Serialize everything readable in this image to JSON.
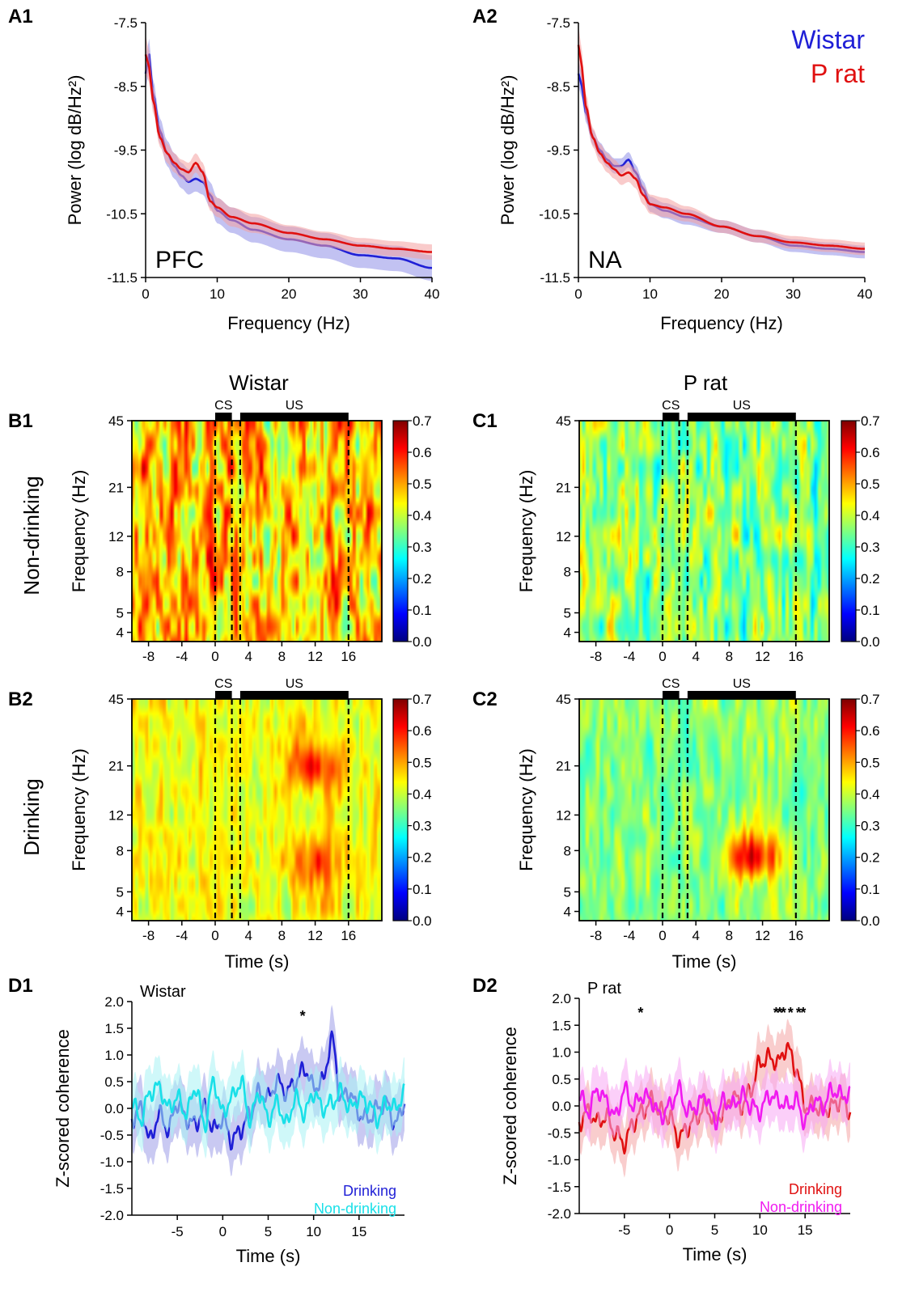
{
  "figure": {
    "column_titles": [
      "Wistar",
      "P rat"
    ],
    "row_labels": [
      "Non-drinking",
      "Drinking"
    ]
  },
  "chart_data": [
    {
      "id": "A1",
      "type": "line",
      "panel_label": "A1",
      "annotation": "PFC",
      "xlabel": "Frequency (Hz)",
      "ylabel": "Power (log dB/Hz²)",
      "xlim": [
        0,
        40
      ],
      "ylim": [
        -11.5,
        -7.5
      ],
      "xticks": [
        0,
        10,
        20,
        30,
        40
      ],
      "yticks": [
        -7.5,
        -8.5,
        -9.5,
        -10.5,
        -11.5
      ],
      "ytick_labels": [
        "-7.5",
        "-8.5",
        "-9.5",
        "-10.5",
        "-11.5"
      ],
      "x": [
        0,
        0.5,
        1,
        2,
        3,
        4,
        5,
        6,
        7,
        8,
        9,
        10,
        12,
        15,
        20,
        25,
        30,
        35,
        40
      ],
      "series": [
        {
          "name": "Wistar",
          "color": "#1f1fd6",
          "band_color": "#8f8fe8",
          "values": [
            -8.3,
            -8.0,
            -8.6,
            -9.2,
            -9.55,
            -9.75,
            -9.9,
            -10.0,
            -9.95,
            -10.0,
            -10.2,
            -10.45,
            -10.6,
            -10.75,
            -10.9,
            -11.0,
            -11.15,
            -11.2,
            -11.35
          ],
          "band": [
            0.25,
            0.25,
            0.22,
            0.2,
            0.2,
            0.2,
            0.2,
            0.2,
            0.2,
            0.2,
            0.2,
            0.2,
            0.2,
            0.2,
            0.2,
            0.2,
            0.2,
            0.2,
            0.2
          ]
        },
        {
          "name": "P rat",
          "color": "#e01010",
          "band_color": "#f4a0a0",
          "values": [
            -8.0,
            -8.2,
            -8.7,
            -9.3,
            -9.55,
            -9.7,
            -9.8,
            -9.85,
            -9.7,
            -9.85,
            -10.3,
            -10.4,
            -10.55,
            -10.65,
            -10.8,
            -10.9,
            -11.0,
            -11.05,
            -11.1
          ],
          "band": [
            0.3,
            0.25,
            0.2,
            0.15,
            0.15,
            0.15,
            0.15,
            0.15,
            0.15,
            0.15,
            0.15,
            0.15,
            0.15,
            0.15,
            0.12,
            0.12,
            0.12,
            0.12,
            0.12
          ]
        }
      ]
    },
    {
      "id": "A2",
      "type": "line",
      "panel_label": "A2",
      "annotation": "NA",
      "xlabel": "Frequency (Hz)",
      "ylabel": "Power (log dB/Hz²)",
      "xlim": [
        0,
        40
      ],
      "ylim": [
        -11.5,
        -7.5
      ],
      "xticks": [
        0,
        10,
        20,
        30,
        40
      ],
      "yticks": [
        -7.5,
        -8.5,
        -9.5,
        -10.5,
        -11.5
      ],
      "ytick_labels": [
        "-7.5",
        "-8.5",
        "-9.5",
        "-10.5",
        "-11.5"
      ],
      "legend": {
        "position": "top-right",
        "entries": [
          "Wistar",
          "P rat"
        ]
      },
      "x": [
        0,
        0.5,
        1,
        2,
        3,
        4,
        5,
        6,
        7,
        8,
        9,
        10,
        12,
        15,
        20,
        25,
        30,
        35,
        40
      ],
      "series": [
        {
          "name": "Wistar",
          "color": "#1f1fd6",
          "band_color": "#8f8fe8",
          "values": [
            -8.3,
            -8.5,
            -8.9,
            -9.3,
            -9.5,
            -9.65,
            -9.75,
            -9.75,
            -9.65,
            -9.85,
            -10.1,
            -10.35,
            -10.45,
            -10.55,
            -10.7,
            -10.85,
            -11.0,
            -11.05,
            -11.1
          ],
          "band": [
            0.2,
            0.2,
            0.15,
            0.12,
            0.12,
            0.12,
            0.12,
            0.12,
            0.12,
            0.12,
            0.12,
            0.12,
            0.12,
            0.12,
            0.1,
            0.1,
            0.1,
            0.1,
            0.1
          ]
        },
        {
          "name": "P rat",
          "color": "#e01010",
          "band_color": "#f4a0a0",
          "values": [
            -7.85,
            -8.2,
            -8.8,
            -9.3,
            -9.55,
            -9.7,
            -9.8,
            -9.9,
            -9.85,
            -9.95,
            -10.2,
            -10.35,
            -10.4,
            -10.5,
            -10.7,
            -10.85,
            -10.95,
            -11.0,
            -11.05
          ],
          "band": [
            0.3,
            0.25,
            0.2,
            0.15,
            0.15,
            0.15,
            0.15,
            0.15,
            0.15,
            0.15,
            0.15,
            0.15,
            0.15,
            0.12,
            0.1,
            0.1,
            0.1,
            0.1,
            0.1
          ]
        }
      ]
    },
    {
      "id": "B1",
      "type": "heatmap",
      "panel_label": "B1",
      "xlabel": "",
      "ylabel": "Frequency (Hz)",
      "xlim": [
        -10,
        20
      ],
      "xticks": [
        -8,
        -4,
        0,
        4,
        8,
        12,
        16
      ],
      "yticks": [
        4,
        5,
        8,
        12,
        21,
        45
      ],
      "clim": [
        0,
        0.7
      ],
      "colorbar_ticks": [
        "0.7",
        "0.6",
        "0.5",
        "0.4",
        "0.3",
        "0.2",
        "0.1",
        "0.0"
      ],
      "events": [
        {
          "label": "CS",
          "start": 0,
          "end": 2
        },
        {
          "label": "US",
          "start": 3,
          "end": 16
        }
      ],
      "dashed_lines": [
        0,
        2,
        3,
        16
      ],
      "mean_value": 0.48,
      "texture": 0.13,
      "blobs": []
    },
    {
      "id": "C1",
      "type": "heatmap",
      "panel_label": "C1",
      "xlabel": "",
      "ylabel": "Frequency (Hz)",
      "xlim": [
        -10,
        20
      ],
      "xticks": [
        -8,
        -4,
        0,
        4,
        8,
        12,
        16
      ],
      "yticks": [
        4,
        5,
        8,
        12,
        21,
        45
      ],
      "clim": [
        0,
        0.7
      ],
      "colorbar_ticks": [
        "0.7",
        "0.6",
        "0.5",
        "0.4",
        "0.3",
        "0.2",
        "0.1",
        "0.0"
      ],
      "events": [
        {
          "label": "CS",
          "start": 0,
          "end": 2
        },
        {
          "label": "US",
          "start": 3,
          "end": 16
        }
      ],
      "dashed_lines": [
        0,
        2,
        3,
        16
      ],
      "mean_value": 0.36,
      "texture": 0.1,
      "blobs": []
    },
    {
      "id": "B2",
      "type": "heatmap",
      "panel_label": "B2",
      "xlabel": "Time (s)",
      "ylabel": "Frequency (Hz)",
      "xlim": [
        -10,
        20
      ],
      "xticks": [
        -8,
        -4,
        0,
        4,
        8,
        12,
        16
      ],
      "yticks": [
        4,
        5,
        8,
        12,
        21,
        45
      ],
      "clim": [
        0,
        0.7
      ],
      "colorbar_ticks": [
        "0.7",
        "0.6",
        "0.5",
        "0.4",
        "0.3",
        "0.2",
        "0.1",
        "0.0"
      ],
      "events": [
        {
          "label": "CS",
          "start": 0,
          "end": 2
        },
        {
          "label": "US",
          "start": 3,
          "end": 16
        }
      ],
      "dashed_lines": [
        0,
        2,
        3,
        16
      ],
      "mean_value": 0.43,
      "texture": 0.06,
      "blobs": [
        {
          "time": 12,
          "freq": 21,
          "value": 0.6
        },
        {
          "time": 12,
          "freq": 7,
          "value": 0.56
        }
      ]
    },
    {
      "id": "C2",
      "type": "heatmap",
      "panel_label": "C2",
      "xlabel": "Time (s)",
      "ylabel": "Frequency (Hz)",
      "xlim": [
        -10,
        20
      ],
      "xticks": [
        -8,
        -4,
        0,
        4,
        8,
        12,
        16
      ],
      "yticks": [
        4,
        5,
        8,
        12,
        21,
        45
      ],
      "clim": [
        0,
        0.7
      ],
      "colorbar_ticks": [
        "0.7",
        "0.6",
        "0.5",
        "0.4",
        "0.3",
        "0.2",
        "0.1",
        "0.0"
      ],
      "events": [
        {
          "label": "CS",
          "start": 0,
          "end": 2
        },
        {
          "label": "US",
          "start": 3,
          "end": 16
        }
      ],
      "dashed_lines": [
        0,
        2,
        3,
        16
      ],
      "mean_value": 0.36,
      "texture": 0.06,
      "blobs": [
        {
          "time": 11,
          "freq": 7.5,
          "value": 0.62
        }
      ]
    },
    {
      "id": "D1",
      "type": "line",
      "panel_label": "D1",
      "annotation": "Wistar",
      "xlabel": "Time (s)",
      "ylabel": "Z-scored coherence",
      "xlim": [
        -10,
        20
      ],
      "ylim": [
        -2.0,
        2.0
      ],
      "xticks": [
        -5,
        0,
        5,
        10,
        15
      ],
      "yticks": [
        2.0,
        1.5,
        1.0,
        0.5,
        0.0,
        -0.5,
        -1.0,
        -1.5,
        -2.0
      ],
      "ytick_labels": [
        "2.0",
        "1.5",
        "1.0",
        "0.5",
        "0.0",
        "-0.5",
        "-1.0",
        "-1.5",
        "-2.0"
      ],
      "significance_marks": [
        {
          "time": 8.8,
          "label": "*"
        }
      ],
      "legend": {
        "position": "bottom-right",
        "entries": [
          "Drinking",
          "Non-drinking"
        ]
      },
      "x": [
        -10,
        -9,
        -8,
        -7,
        -6,
        -5,
        -4,
        -3,
        -2,
        -1,
        0,
        1,
        2,
        3,
        4,
        5,
        6,
        7,
        8,
        9,
        10,
        11,
        12,
        13,
        14,
        15,
        16,
        17,
        18,
        19,
        20
      ],
      "series": [
        {
          "name": "Drinking",
          "color": "#1f1fd6",
          "band_color": "#9c9ce8",
          "values": [
            -0.2,
            0.0,
            -0.6,
            -0.1,
            -0.4,
            0.1,
            -0.2,
            -0.3,
            0.0,
            -0.4,
            -0.2,
            -0.6,
            -0.4,
            -0.1,
            0.3,
            0.2,
            0.5,
            0.3,
            0.5,
            0.75,
            0.4,
            0.5,
            1.3,
            0.2,
            0.3,
            -0.1,
            -0.2,
            0.0,
            0.1,
            -0.3,
            0.1
          ],
          "band": [
            0.5,
            0.5,
            0.5,
            0.5,
            0.5,
            0.5,
            0.5,
            0.5,
            0.5,
            0.5,
            0.5,
            0.5,
            0.5,
            0.5,
            0.5,
            0.5,
            0.5,
            0.5,
            0.5,
            0.5,
            0.5,
            0.5,
            0.5,
            0.5,
            0.5,
            0.5,
            0.5,
            0.5,
            0.5,
            0.5,
            0.5
          ]
        },
        {
          "name": "Non-drinking",
          "color": "#19e0e8",
          "band_color": "#a8f2f4",
          "values": [
            0.1,
            -0.2,
            0.3,
            0.4,
            0.0,
            0.2,
            -0.1,
            0.4,
            -0.3,
            0.5,
            -0.1,
            0.2,
            0.5,
            -0.2,
            0.3,
            -0.2,
            0.1,
            -0.3,
            0.2,
            -0.1,
            0.3,
            0.0,
            0.1,
            0.3,
            0.0,
            0.2,
            0.1,
            -0.2,
            0.1,
            0.0,
            0.3
          ],
          "band": [
            0.5,
            0.5,
            0.5,
            0.5,
            0.5,
            0.5,
            0.5,
            0.5,
            0.5,
            0.5,
            0.5,
            0.5,
            0.5,
            0.5,
            0.5,
            0.5,
            0.5,
            0.5,
            0.5,
            0.5,
            0.5,
            0.5,
            0.5,
            0.5,
            0.5,
            0.5,
            0.5,
            0.5,
            0.5,
            0.5,
            0.5
          ]
        }
      ]
    },
    {
      "id": "D2",
      "type": "line",
      "panel_label": "D2",
      "annotation": "P rat",
      "xlabel": "Time (s)",
      "ylabel": "Z-scored coherence",
      "xlim": [
        -10,
        20
      ],
      "ylim": [
        -2.0,
        2.0
      ],
      "xticks": [
        -5,
        0,
        5,
        10,
        15
      ],
      "yticks": [
        2.0,
        1.5,
        1.0,
        0.5,
        0.0,
        -0.5,
        -1.0,
        -1.5,
        -2.0
      ],
      "ytick_labels": [
        "2.0",
        "1.5",
        "1.0",
        "0.5",
        "0.0",
        "-0.5",
        "-1.0",
        "-1.5",
        "-2.0"
      ],
      "significance_marks": [
        {
          "time": -3.2,
          "label": "*"
        },
        {
          "time": 11.8,
          "label": "*"
        },
        {
          "time": 12.2,
          "label": "*"
        },
        {
          "time": 12.6,
          "label": "*"
        },
        {
          "time": 13.4,
          "label": "*"
        },
        {
          "time": 14.3,
          "label": "*"
        },
        {
          "time": 14.8,
          "label": "*"
        }
      ],
      "legend": {
        "position": "bottom-right",
        "entries": [
          "Drinking",
          "Non-drinking"
        ]
      },
      "x": [
        -10,
        -9,
        -8,
        -7,
        -6,
        -5,
        -4,
        -3,
        -2,
        -1,
        0,
        1,
        2,
        3,
        4,
        5,
        6,
        7,
        8,
        9,
        10,
        11,
        12,
        13,
        14,
        15,
        16,
        17,
        18,
        19,
        20
      ],
      "series": [
        {
          "name": "Drinking",
          "color": "#e01010",
          "band_color": "#f4a4a4",
          "values": [
            -0.3,
            -0.1,
            -0.3,
            -0.2,
            -0.5,
            -0.7,
            -0.3,
            -0.1,
            0.1,
            -0.1,
            -0.2,
            -0.6,
            -0.4,
            -0.2,
            0.0,
            -0.3,
            -0.1,
            0.2,
            0.0,
            0.3,
            0.8,
            0.9,
            0.8,
            1.1,
            0.7,
            0.0,
            0.0,
            -0.1,
            0.0,
            0.1,
            -0.1
          ],
          "band": [
            0.45,
            0.45,
            0.45,
            0.45,
            0.45,
            0.45,
            0.45,
            0.45,
            0.45,
            0.45,
            0.45,
            0.45,
            0.45,
            0.45,
            0.45,
            0.45,
            0.45,
            0.45,
            0.45,
            0.45,
            0.45,
            0.45,
            0.45,
            0.45,
            0.45,
            0.45,
            0.45,
            0.45,
            0.45,
            0.45,
            0.45
          ]
        },
        {
          "name": "Non-drinking",
          "color": "#f01af0",
          "band_color": "#f7a8f4",
          "values": [
            0.2,
            -0.1,
            0.3,
            0.1,
            -0.2,
            0.3,
            0.0,
            0.2,
            0.1,
            -0.2,
            0.0,
            0.3,
            -0.1,
            0.0,
            0.2,
            -0.3,
            0.1,
            0.0,
            0.2,
            0.0,
            -0.1,
            0.2,
            0.1,
            0.0,
            0.1,
            -0.3,
            0.1,
            0.0,
            0.3,
            0.2,
            0.2
          ],
          "band": [
            0.45,
            0.45,
            0.45,
            0.45,
            0.45,
            0.45,
            0.45,
            0.45,
            0.45,
            0.45,
            0.45,
            0.45,
            0.45,
            0.45,
            0.45,
            0.45,
            0.45,
            0.45,
            0.45,
            0.45,
            0.45,
            0.45,
            0.45,
            0.45,
            0.45,
            0.45,
            0.45,
            0.45,
            0.45,
            0.45,
            0.45
          ]
        }
      ]
    }
  ]
}
